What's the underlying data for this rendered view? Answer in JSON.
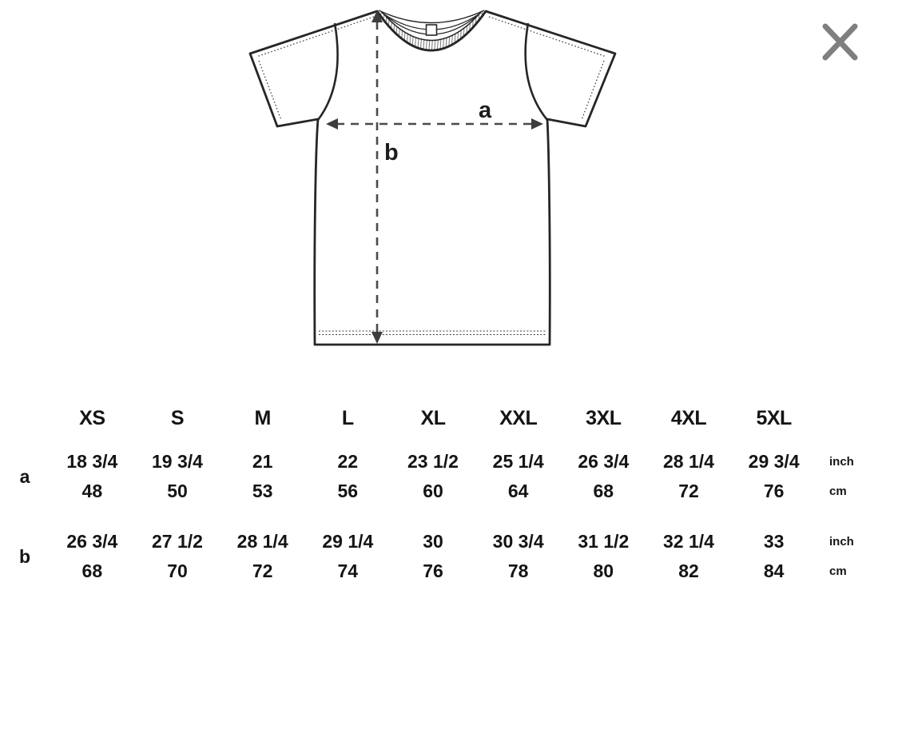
{
  "modal": {
    "close_icon": "close-x"
  },
  "diagram": {
    "width_label": "a",
    "length_label": "b"
  },
  "size_chart": {
    "sizes": [
      "XS",
      "S",
      "M",
      "L",
      "XL",
      "XXL",
      "3XL",
      "4XL",
      "5XL"
    ],
    "measurements": [
      {
        "label": "a",
        "inch_values": [
          "18 3/4",
          "19 3/4",
          "21",
          "22",
          "23 1/2",
          "25 1/4",
          "26 3/4",
          "28 1/4",
          "29 3/4"
        ],
        "cm_values": [
          "48",
          "50",
          "53",
          "56",
          "60",
          "64",
          "68",
          "72",
          "76"
        ],
        "inch_unit": "inch",
        "cm_unit": "cm"
      },
      {
        "label": "b",
        "inch_values": [
          "26 3/4",
          "27 1/2",
          "28 1/4",
          "29 1/4",
          "30",
          "30 3/4",
          "31 1/2",
          "32 1/4",
          "33"
        ],
        "cm_values": [
          "68",
          "70",
          "72",
          "74",
          "76",
          "78",
          "80",
          "82",
          "84"
        ],
        "inch_unit": "inch",
        "cm_unit": "cm"
      }
    ]
  },
  "colors": {
    "outline": "#262626",
    "dash": "#4a4a4a",
    "close": "#7f7f7f",
    "text": "#141414"
  },
  "chart_data": {
    "type": "table",
    "title": "T-shirt size chart (a = width, b = length)",
    "columns": [
      "XS",
      "S",
      "M",
      "L",
      "XL",
      "XXL",
      "3XL",
      "4XL",
      "5XL"
    ],
    "rows": [
      {
        "measure": "a",
        "unit": "inch",
        "values": [
          "18 3/4",
          "19 3/4",
          "21",
          "22",
          "23 1/2",
          "25 1/4",
          "26 3/4",
          "28 1/4",
          "29 3/4"
        ]
      },
      {
        "measure": "a",
        "unit": "cm",
        "values": [
          48,
          50,
          53,
          56,
          60,
          64,
          68,
          72,
          76
        ]
      },
      {
        "measure": "b",
        "unit": "inch",
        "values": [
          "26 3/4",
          "27 1/2",
          "28 1/4",
          "29 1/4",
          "30",
          "30 3/4",
          "31 1/2",
          "32 1/4",
          "33"
        ]
      },
      {
        "measure": "b",
        "unit": "cm",
        "values": [
          68,
          70,
          72,
          74,
          76,
          78,
          80,
          82,
          84
        ]
      }
    ]
  }
}
